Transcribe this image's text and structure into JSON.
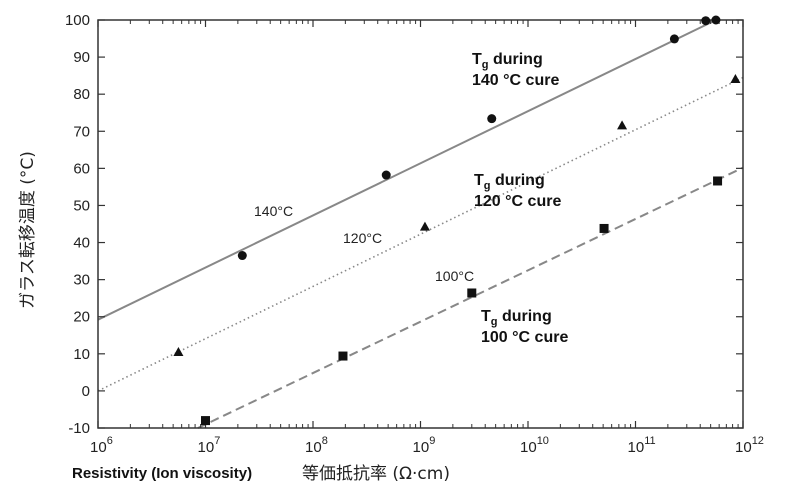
{
  "chart_data": {
    "type": "scatter",
    "title": "",
    "ylabel": "ガラス転移温度 (°C)",
    "xlabel_en": "Resistivity (Ion viscosity)",
    "xlabel_jp": "等価抵抗率 (Ω·cm)",
    "x_scale": "log",
    "xlim": [
      1000000,
      1000000000000
    ],
    "ylim": [
      -10,
      100
    ],
    "x_ticks": [
      {
        "base": "10",
        "exp": "6",
        "value": 1000000
      },
      {
        "base": "10",
        "exp": "7",
        "value": 10000000
      },
      {
        "base": "10",
        "exp": "8",
        "value": 100000000
      },
      {
        "base": "10",
        "exp": "9",
        "value": 1000000000
      },
      {
        "base": "10",
        "exp": "10",
        "value": 10000000000
      },
      {
        "base": "10",
        "exp": "11",
        "value": 100000000000
      },
      {
        "base": "10",
        "exp": "12",
        "value": 1000000000000
      }
    ],
    "y_ticks": [
      "-10",
      "0",
      "10",
      "20",
      "30",
      "40",
      "50",
      "60",
      "70",
      "80",
      "90",
      "100"
    ],
    "grid": false,
    "series": [
      {
        "name": "140°C",
        "marker": "circle",
        "line_style": "solid",
        "color": "#888888",
        "points": [
          {
            "x": 22000000,
            "y": 36.5
          },
          {
            "x": 480000000,
            "y": 58.2
          },
          {
            "x": 4600000000,
            "y": 73.4
          },
          {
            "x": 230000000000,
            "y": 94.9
          },
          {
            "x": 450000000000,
            "y": 99.8
          },
          {
            "x": 560000000000,
            "y": 100
          }
        ],
        "fit": [
          {
            "x": 1000000,
            "y": 19.2
          },
          {
            "x": 560000000000,
            "y": 100
          }
        ]
      },
      {
        "name": "120°C",
        "marker": "triangle",
        "line_style": "dotted",
        "color": "#888888",
        "points": [
          {
            "x": 5600000,
            "y": 10.5
          },
          {
            "x": 1100000000,
            "y": 44.3
          },
          {
            "x": 75000000000,
            "y": 71.6
          },
          {
            "x": 850000000000,
            "y": 84.1
          }
        ],
        "fit": [
          {
            "x": 1000000,
            "y": 0
          },
          {
            "x": 1000000000000,
            "y": 84.5
          }
        ]
      },
      {
        "name": "100°C",
        "marker": "square",
        "line_style": "dashed",
        "color": "#888888",
        "points": [
          {
            "x": 10000000,
            "y": -8
          },
          {
            "x": 190000000,
            "y": 9.4
          },
          {
            "x": 3000000000,
            "y": 26.4
          },
          {
            "x": 51000000000,
            "y": 43.8
          },
          {
            "x": 580000000000,
            "y": 56.6
          }
        ],
        "fit": [
          {
            "x": 8500000,
            "y": -10
          },
          {
            "x": 1000000000000,
            "y": 60.2
          }
        ]
      }
    ],
    "annotations": [
      {
        "id": "cure-140",
        "line1": "T",
        "sub": "g",
        "line1_rest": " during",
        "line2": "140 °C cure"
      },
      {
        "id": "cure-120",
        "line1": "T",
        "sub": "g",
        "line1_rest": " during",
        "line2": "120 °C cure"
      },
      {
        "id": "cure-100",
        "line1": "T",
        "sub": "g",
        "line1_rest": " during",
        "line2": "100 °C cure"
      }
    ]
  }
}
